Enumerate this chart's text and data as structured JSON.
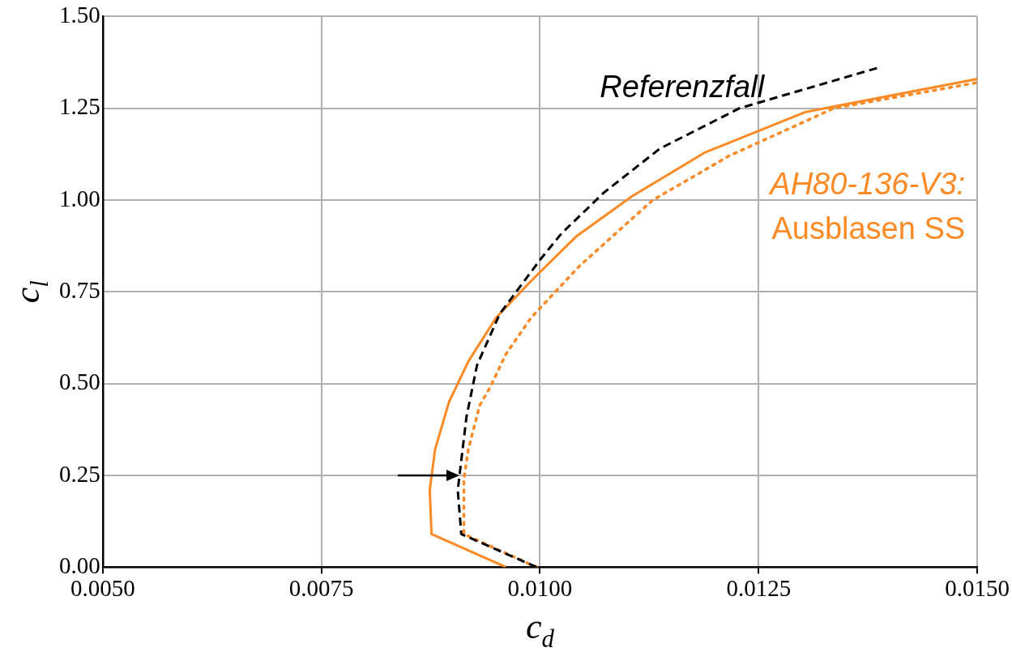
{
  "chart_data": {
    "type": "line",
    "xlabel": "c$_{d}$",
    "ylabel": "c$_{l}$",
    "xlim": [
      0.005,
      0.015
    ],
    "ylim": [
      0,
      1.5
    ],
    "xticks": [
      {
        "value": 0.005,
        "label": "0.0050"
      },
      {
        "value": 0.0075,
        "label": "0.0075"
      },
      {
        "value": 0.01,
        "label": "0.0100"
      },
      {
        "value": 0.0125,
        "label": "0.0125"
      },
      {
        "value": 0.015,
        "label": "0.0150"
      }
    ],
    "yticks": [
      {
        "value": 0,
        "label": "0.00"
      },
      {
        "value": 0.25,
        "label": "0.25"
      },
      {
        "value": 0.5,
        "label": "0.50"
      },
      {
        "value": 0.75,
        "label": "0.75"
      },
      {
        "value": 1,
        "label": "1.00"
      },
      {
        "value": 1.25,
        "label": "1.25"
      },
      {
        "value": 1.5,
        "label": "1.50"
      }
    ],
    "grid": true,
    "legend": false,
    "marker": "none",
    "series": [
      {
        "name": "Referenzfall",
        "color": "#000000",
        "line_style": "dashed",
        "x": [
          0.00996,
          0.0091,
          0.00906,
          0.00908,
          0.00916,
          0.00928,
          0.00954,
          0.01001,
          0.01025,
          0.01073,
          0.01137,
          0.01228,
          0.01386
        ],
        "values": [
          0,
          0.09,
          0.21,
          0.25,
          0.41,
          0.55,
          0.69,
          0.84,
          0.91,
          1.02,
          1.14,
          1.25,
          1.36
        ]
      },
      {
        "name": "AH80-136-V3: Ausblasen SS",
        "color": "#fd8a25",
        "line_style": "solid",
        "x": [
          0.00961,
          0.00876,
          0.00874,
          0.0088,
          0.00896,
          0.00918,
          0.0095,
          0.0099,
          0.01041,
          0.01105,
          0.01189,
          0.01304,
          0.015
        ],
        "values": [
          0,
          0.09,
          0.21,
          0.32,
          0.45,
          0.56,
          0.68,
          0.78,
          0.9,
          1.01,
          1.13,
          1.24,
          1.33
        ]
      },
      {
        "color": "#fd8a25",
        "line_style": "dotted",
        "x": [
          0.00996,
          0.00913,
          0.00913,
          0.00918,
          0.00931,
          0.00943,
          0.00961,
          0.0099,
          0.01045,
          0.01129,
          0.01216,
          0.01336,
          0.015
        ],
        "values": [
          0,
          0.09,
          0.24,
          0.32,
          0.44,
          0.49,
          0.58,
          0.68,
          0.82,
          1.0,
          1.12,
          1.25,
          1.32
        ]
      }
    ]
  }
}
